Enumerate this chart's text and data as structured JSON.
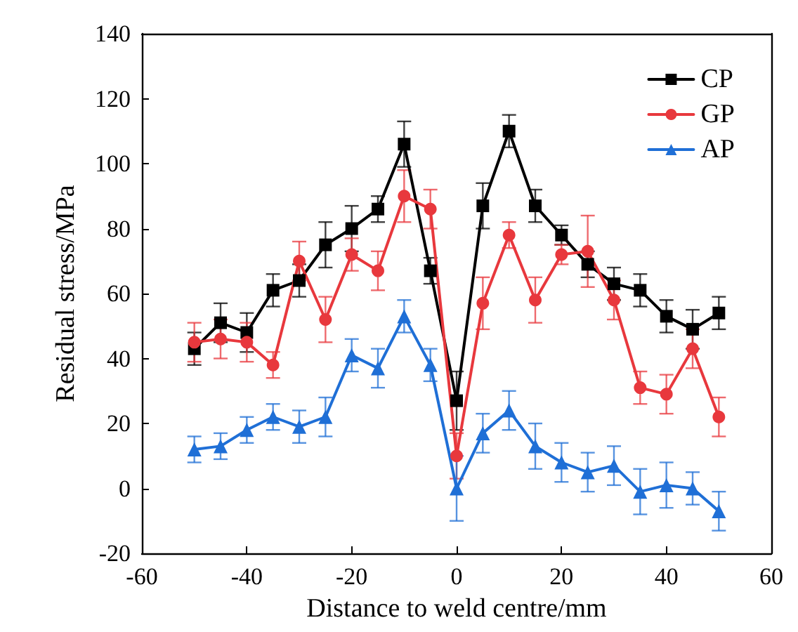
{
  "chart_data": {
    "type": "line",
    "xlabel": "Distance to weld centre/mm",
    "ylabel": "Residual stress/MPa",
    "x": [
      -50,
      -45,
      -40,
      -35,
      -30,
      -25,
      -20,
      -15,
      -10,
      -5,
      0,
      5,
      10,
      15,
      20,
      25,
      30,
      35,
      40,
      45,
      50
    ],
    "series": [
      {
        "name": "CP",
        "color": "#000000",
        "marker": "square",
        "values": [
          43,
          51,
          48,
          61,
          64,
          75,
          80,
          86,
          106,
          67,
          27,
          87,
          110,
          87,
          78,
          69,
          63,
          61,
          53,
          49,
          54
        ],
        "errors": [
          5,
          6,
          6,
          5,
          5,
          7,
          7,
          4,
          7,
          4,
          9,
          7,
          5,
          5,
          3,
          4,
          5,
          5,
          5,
          6,
          5
        ]
      },
      {
        "name": "GP",
        "color": "#e8383d",
        "marker": "circle",
        "values": [
          45,
          46,
          45,
          38,
          70,
          52,
          72,
          67,
          90,
          86,
          10,
          57,
          78,
          58,
          72,
          73,
          58,
          31,
          29,
          43,
          22
        ],
        "errors": [
          6,
          6,
          6,
          4,
          6,
          7,
          5,
          6,
          8,
          6,
          7,
          8,
          4,
          7,
          3,
          11,
          6,
          5,
          6,
          6,
          6
        ]
      },
      {
        "name": "AP",
        "color": "#1f6fd6",
        "marker": "triangle",
        "values": [
          12,
          13,
          18,
          22,
          19,
          22,
          41,
          37,
          53,
          38,
          0,
          17,
          24,
          13,
          8,
          5,
          7,
          -1,
          1,
          0,
          -7
        ],
        "errors": [
          4,
          4,
          4,
          4,
          5,
          6,
          5,
          6,
          5,
          5,
          10,
          6,
          6,
          7,
          6,
          6,
          6,
          7,
          7,
          5,
          6
        ]
      }
    ],
    "xlim": [
      -60,
      60
    ],
    "xticks": [
      -60,
      -40,
      -20,
      0,
      20,
      40,
      60
    ],
    "ylim": [
      -20,
      140
    ],
    "yticks": [
      -20,
      0,
      20,
      40,
      60,
      80,
      100,
      120,
      140
    ],
    "grid": false,
    "legend": "top right",
    "line_style": "solid"
  }
}
